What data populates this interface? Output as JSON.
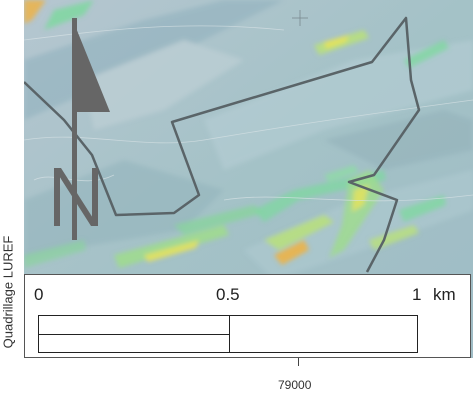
{
  "map": {
    "grid_label": "Quadrillage LUREF",
    "x_coordinate_label": "79000",
    "north_arrow_letter": "N",
    "north_arrow_icon": "north-arrow-icon",
    "boundary_color": "#5a6468",
    "background_color": "#a9c2cc",
    "highlight_colors": [
      "#7fd7a0",
      "#e7e35a",
      "#f0b23e"
    ]
  },
  "scale_bar": {
    "labels": [
      "0",
      "0.5",
      "1"
    ],
    "unit": "km"
  }
}
